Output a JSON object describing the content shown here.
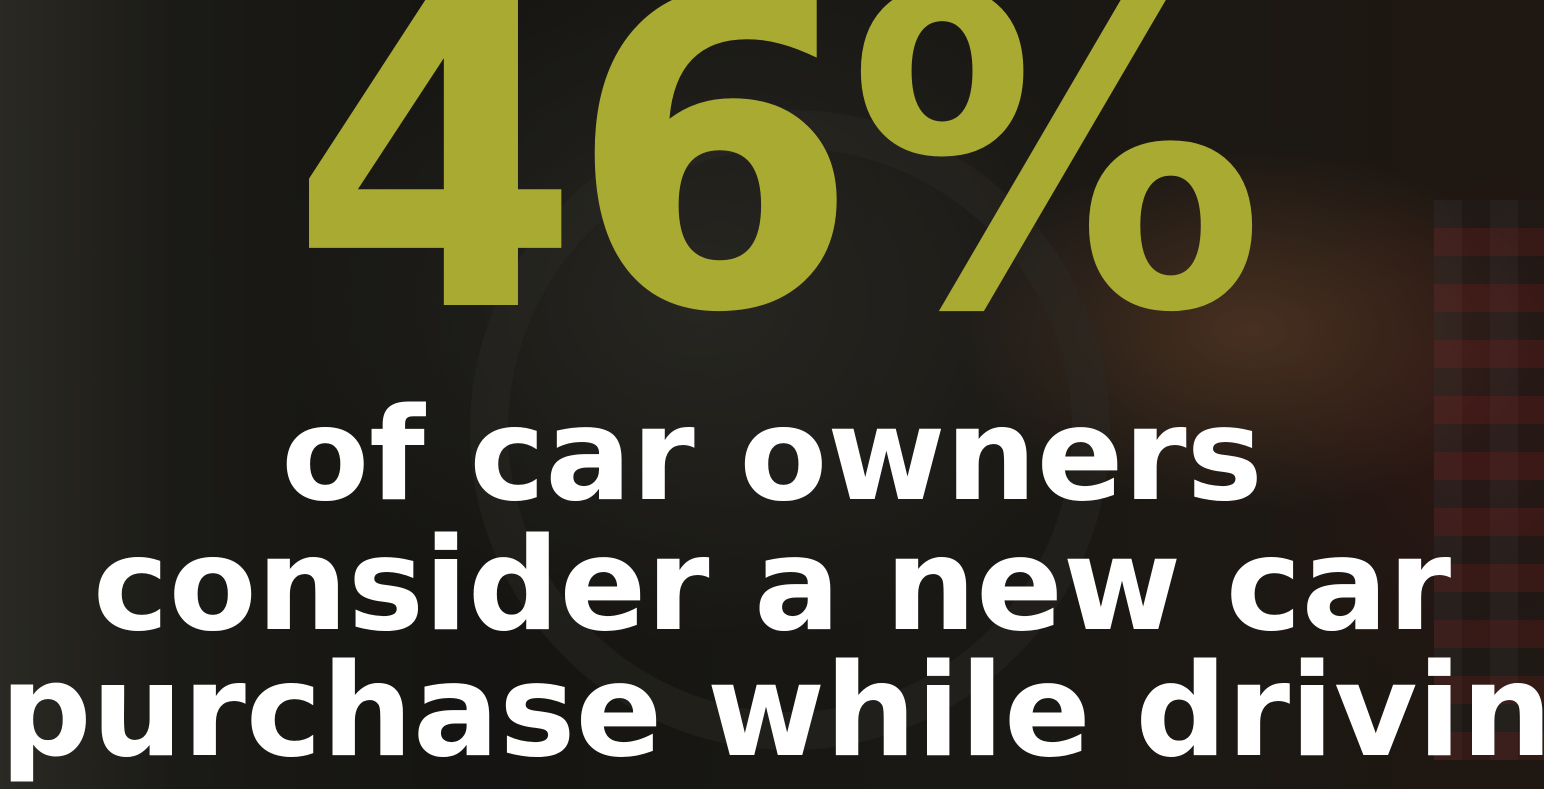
{
  "stat": {
    "value": "46%",
    "color": "#a8aa32"
  },
  "caption": {
    "line1": "of car owners",
    "line2": "consider a new car",
    "line3": "purchase while driving",
    "color": "#ffffff"
  }
}
